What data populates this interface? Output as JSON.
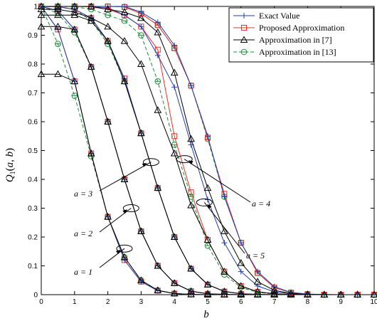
{
  "chart_data": {
    "type": "line",
    "xlabel": "b",
    "ylabel": "Q_1(a,b)",
    "xlim": [
      0,
      10
    ],
    "ylim": [
      0,
      1
    ],
    "x_ticks": [
      0,
      1,
      2,
      3,
      4,
      5,
      6,
      7,
      8,
      9,
      10
    ],
    "y_ticks": [
      0,
      0.1,
      0.2,
      0.3,
      0.4,
      0.5,
      0.6,
      0.7,
      0.8,
      0.9,
      1
    ],
    "grid": false,
    "legend_position": "top-right",
    "legend": [
      {
        "label": "Exact Value",
        "color": "#1f3faa",
        "marker": "plus",
        "dash": "solid"
      },
      {
        "label": "Proposed Approximation",
        "color": "#e8302a",
        "marker": "square",
        "dash": "solid"
      },
      {
        "label": "Approximation in [7]",
        "color": "#000000",
        "marker": "triangle",
        "dash": "solid"
      },
      {
        "label": "Approximation in [13]",
        "color": "#1e8c3a",
        "marker": "circle",
        "dash": "dashed"
      }
    ],
    "x": [
      0,
      0.5,
      1,
      1.5,
      2,
      2.5,
      3,
      3.5,
      4,
      4.5,
      5,
      5.5,
      6,
      6.5,
      7,
      7.5,
      8,
      8.5,
      9,
      9.5,
      10
    ],
    "series": [
      {
        "a": 1,
        "exact": [
          1.0,
          0.92,
          0.74,
          0.49,
          0.27,
          0.12,
          0.045,
          0.014,
          0.004,
          0.001,
          0,
          0,
          0,
          0,
          0,
          0,
          0,
          0,
          0,
          0,
          0
        ],
        "proposed": [
          1.0,
          0.92,
          0.74,
          0.49,
          0.27,
          0.12,
          0.045,
          0.014,
          0.004,
          0.001,
          0,
          0,
          0,
          0,
          0,
          0,
          0,
          0,
          0,
          0,
          0
        ],
        "approx7": [
          0.765,
          0.765,
          0.74,
          0.49,
          0.27,
          0.13,
          0.05,
          0.015,
          0.004,
          0.001,
          0,
          0,
          0,
          0,
          0,
          0,
          0,
          0,
          0,
          0,
          0
        ],
        "approx13": [
          1.0,
          0.87,
          0.69,
          0.48,
          0.27,
          0.13,
          0.05,
          0.015,
          0.004,
          0.001,
          0,
          0,
          0,
          0,
          0,
          0,
          0,
          0,
          0,
          0,
          0
        ]
      },
      {
        "a": 2,
        "exact": [
          1.0,
          0.985,
          0.92,
          0.79,
          0.6,
          0.4,
          0.22,
          0.1,
          0.04,
          0.012,
          0.003,
          0.001,
          0,
          0,
          0,
          0,
          0,
          0,
          0,
          0,
          0
        ],
        "proposed": [
          1.0,
          0.985,
          0.92,
          0.79,
          0.6,
          0.4,
          0.22,
          0.1,
          0.04,
          0.012,
          0.003,
          0.001,
          0,
          0,
          0,
          0,
          0,
          0,
          0,
          0,
          0
        ],
        "approx7": [
          0.93,
          0.93,
          0.92,
          0.79,
          0.6,
          0.4,
          0.22,
          0.1,
          0.04,
          0.012,
          0.003,
          0.001,
          0,
          0,
          0,
          0,
          0,
          0,
          0,
          0,
          0
        ],
        "approx13": [
          1.0,
          0.975,
          0.91,
          0.79,
          0.6,
          0.4,
          0.22,
          0.1,
          0.04,
          0.012,
          0.003,
          0.001,
          0,
          0,
          0,
          0,
          0,
          0,
          0,
          0,
          0
        ]
      },
      {
        "a": 3,
        "exact": [
          1.0,
          0.999,
          0.99,
          0.96,
          0.88,
          0.75,
          0.56,
          0.37,
          0.2,
          0.09,
          0.035,
          0.011,
          0.003,
          0.001,
          0,
          0,
          0,
          0,
          0,
          0,
          0
        ],
        "proposed": [
          1.0,
          0.999,
          0.99,
          0.96,
          0.88,
          0.75,
          0.56,
          0.37,
          0.2,
          0.09,
          0.035,
          0.011,
          0.003,
          0.001,
          0,
          0,
          0,
          0,
          0,
          0,
          0
        ],
        "approx7": [
          0.97,
          0.97,
          0.97,
          0.95,
          0.88,
          0.74,
          0.56,
          0.37,
          0.2,
          0.09,
          0.035,
          0.011,
          0.003,
          0.001,
          0,
          0,
          0,
          0,
          0,
          0,
          0
        ],
        "approx13": [
          1.0,
          0.998,
          0.99,
          0.95,
          0.87,
          0.74,
          0.56,
          0.37,
          0.2,
          0.09,
          0.035,
          0.011,
          0.003,
          0.001,
          0,
          0,
          0,
          0,
          0,
          0,
          0
        ]
      },
      {
        "a": 4,
        "exact": [
          1.0,
          1.0,
          1.0,
          1.0,
          0.995,
          0.97,
          0.93,
          0.83,
          0.72,
          0.52,
          0.33,
          0.18,
          0.08,
          0.03,
          0.01,
          0.003,
          0.001,
          0,
          0,
          0,
          0
        ],
        "proposed": [
          1.0,
          1.0,
          1.0,
          0.998,
          0.99,
          0.97,
          0.93,
          0.85,
          0.55,
          0.355,
          0.19,
          0.08,
          0.03,
          0.01,
          0.003,
          0.001,
          0,
          0,
          0,
          0,
          0
        ],
        "approx7": [
          0.99,
          0.99,
          0.98,
          0.96,
          0.93,
          0.88,
          0.8,
          0.64,
          0.49,
          0.31,
          0.19,
          0.08,
          0.03,
          0.01,
          0.003,
          0.001,
          0,
          0,
          0,
          0,
          0
        ],
        "approx13": [
          1.0,
          1.0,
          0.999,
          0.99,
          0.97,
          0.95,
          0.9,
          0.74,
          0.52,
          0.34,
          0.17,
          0.07,
          0.025,
          0.008,
          0.002,
          0.001,
          0,
          0,
          0,
          0,
          0
        ]
      },
      {
        "a": 5,
        "exact": [
          1.0,
          1.0,
          1.0,
          1.0,
          1.0,
          1.0,
          0.98,
          0.945,
          0.865,
          0.725,
          0.55,
          0.34,
          0.18,
          0.08,
          0.028,
          0.008,
          0.002,
          0.001,
          0,
          0,
          0
        ],
        "proposed": [
          1.0,
          1.0,
          1.0,
          1.0,
          1.0,
          0.998,
          0.975,
          0.935,
          0.855,
          0.725,
          0.545,
          0.35,
          0.18,
          0.075,
          0.025,
          0.007,
          0.002,
          0,
          0,
          0,
          0
        ],
        "approx7": [
          1.0,
          1.0,
          1.0,
          1.0,
          0.99,
          0.98,
          0.96,
          0.91,
          0.77,
          0.54,
          0.37,
          0.22,
          0.11,
          0.045,
          0.015,
          0.004,
          0.001,
          0,
          0,
          0,
          0
        ],
        "approx13": [
          1.0,
          1.0,
          1.0,
          1.0,
          1.0,
          0.998,
          0.975,
          0.935,
          0.855,
          0.725,
          0.54,
          0.34,
          0.18,
          0.075,
          0.025,
          0.007,
          0.002,
          0,
          0,
          0,
          0
        ]
      }
    ],
    "annotations": [
      {
        "text": "a = 1",
        "ellipse_at": [
          2.5,
          0.16
        ]
      },
      {
        "text": "a = 2",
        "ellipse_at": [
          2.7,
          0.3
        ]
      },
      {
        "text": "a = 3",
        "ellipse_at": [
          3.3,
          0.46
        ]
      },
      {
        "text": "a = 4",
        "ellipse_at": [
          4.3,
          0.47
        ]
      },
      {
        "text": "a = 5",
        "ellipse_at": [
          4.9,
          0.32
        ]
      }
    ]
  }
}
